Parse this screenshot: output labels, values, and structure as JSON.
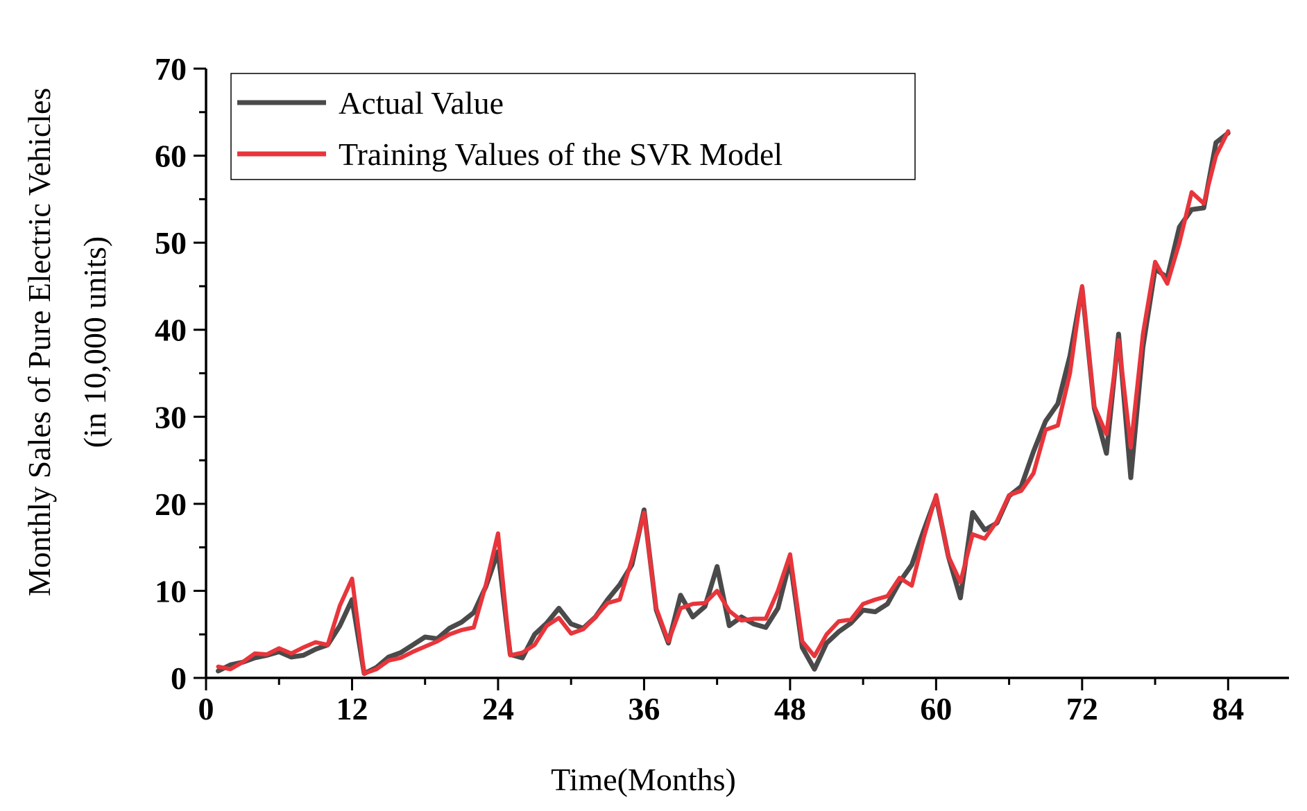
{
  "chart_data": {
    "type": "line",
    "title": "",
    "xlabel": "Time(Months)",
    "ylabel_lines": [
      "Monthly Sales of Pure Electric Vehicles",
      "(in 10,000 units)"
    ],
    "xlim": [
      0,
      89
    ],
    "ylim": [
      0,
      70
    ],
    "x_ticks": [
      0,
      12,
      24,
      36,
      48,
      60,
      72,
      84
    ],
    "x_minor_step": 6,
    "y_ticks": [
      0,
      10,
      20,
      30,
      40,
      50,
      60,
      70
    ],
    "y_minor_step": 5,
    "grid": false,
    "legend_position": "top-left",
    "series": [
      {
        "name": "Actual Value",
        "color": "#4a4a4a",
        "x": [
          1,
          2,
          3,
          4,
          5,
          6,
          7,
          8,
          9,
          10,
          11,
          12,
          13,
          14,
          15,
          16,
          17,
          18,
          19,
          20,
          21,
          22,
          23,
          24,
          25,
          26,
          27,
          28,
          29,
          30,
          31,
          32,
          33,
          34,
          35,
          36,
          37,
          38,
          39,
          40,
          41,
          42,
          43,
          44,
          45,
          46,
          47,
          48,
          49,
          50,
          51,
          52,
          53,
          54,
          55,
          56,
          57,
          58,
          59,
          60,
          61,
          62,
          63,
          64,
          65,
          66,
          67,
          68,
          69,
          70,
          71,
          72,
          73,
          74,
          75,
          76,
          77,
          78,
          79,
          80,
          81,
          82,
          83,
          84
        ],
        "values": [
          0.8,
          1.5,
          1.8,
          2.3,
          2.6,
          3.0,
          2.4,
          2.6,
          3.3,
          3.8,
          6.0,
          9.0,
          0.5,
          1.2,
          2.4,
          2.9,
          3.8,
          4.7,
          4.5,
          5.7,
          6.4,
          7.5,
          10.5,
          14.5,
          2.7,
          2.3,
          5.0,
          6.3,
          8.0,
          6.2,
          5.7,
          7.0,
          9.0,
          10.7,
          13.0,
          19.3,
          7.8,
          4.0,
          9.5,
          7.0,
          8.2,
          12.8,
          6.0,
          7.0,
          6.2,
          5.8,
          8.0,
          13.5,
          3.5,
          1.0,
          4.0,
          5.3,
          6.3,
          7.8,
          7.6,
          8.5,
          11.0,
          13.0,
          17.0,
          20.8,
          14.0,
          9.2,
          19.0,
          17.0,
          17.8,
          20.9,
          22.0,
          26.0,
          29.5,
          31.5,
          37.0,
          44.8,
          31.0,
          25.8,
          39.5,
          23.0,
          38.0,
          47.0,
          46.0,
          51.8,
          53.8,
          54.0,
          61.5,
          62.6
        ]
      },
      {
        "name": "Training Values of the SVR Model",
        "color": "#e8353b",
        "x": [
          1,
          2,
          3,
          4,
          5,
          6,
          7,
          8,
          9,
          10,
          11,
          12,
          13,
          14,
          15,
          16,
          17,
          18,
          19,
          20,
          21,
          22,
          23,
          24,
          25,
          26,
          27,
          28,
          29,
          30,
          31,
          32,
          33,
          34,
          35,
          36,
          37,
          38,
          39,
          40,
          41,
          42,
          43,
          44,
          45,
          46,
          47,
          48,
          49,
          50,
          51,
          52,
          53,
          54,
          55,
          56,
          57,
          58,
          59,
          60,
          61,
          62,
          63,
          64,
          65,
          66,
          67,
          68,
          69,
          70,
          71,
          72,
          73,
          74,
          75,
          76,
          77,
          78,
          79,
          80,
          81,
          82,
          83,
          84
        ],
        "values": [
          1.3,
          1.0,
          1.8,
          2.8,
          2.7,
          3.4,
          2.8,
          3.5,
          4.1,
          3.8,
          8.3,
          11.4,
          0.5,
          1.0,
          2.0,
          2.3,
          3.0,
          3.6,
          4.2,
          5.0,
          5.5,
          5.8,
          10.7,
          16.6,
          2.6,
          2.9,
          3.8,
          6.0,
          6.9,
          5.1,
          5.6,
          7.0,
          8.6,
          9.0,
          13.6,
          19.0,
          8.0,
          4.2,
          8.0,
          8.5,
          8.6,
          10.0,
          7.7,
          6.6,
          6.8,
          6.8,
          10.0,
          14.2,
          4.2,
          2.5,
          5.0,
          6.5,
          6.7,
          8.5,
          9.0,
          9.4,
          11.5,
          10.6,
          16.2,
          21.0,
          14.0,
          11.0,
          16.5,
          16.0,
          18.0,
          21.0,
          21.5,
          23.5,
          28.5,
          29.0,
          35.0,
          45.0,
          31.2,
          28.0,
          38.8,
          26.5,
          39.5,
          47.8,
          45.3,
          50.0,
          55.8,
          54.5,
          60.0,
          62.8
        ]
      }
    ]
  }
}
